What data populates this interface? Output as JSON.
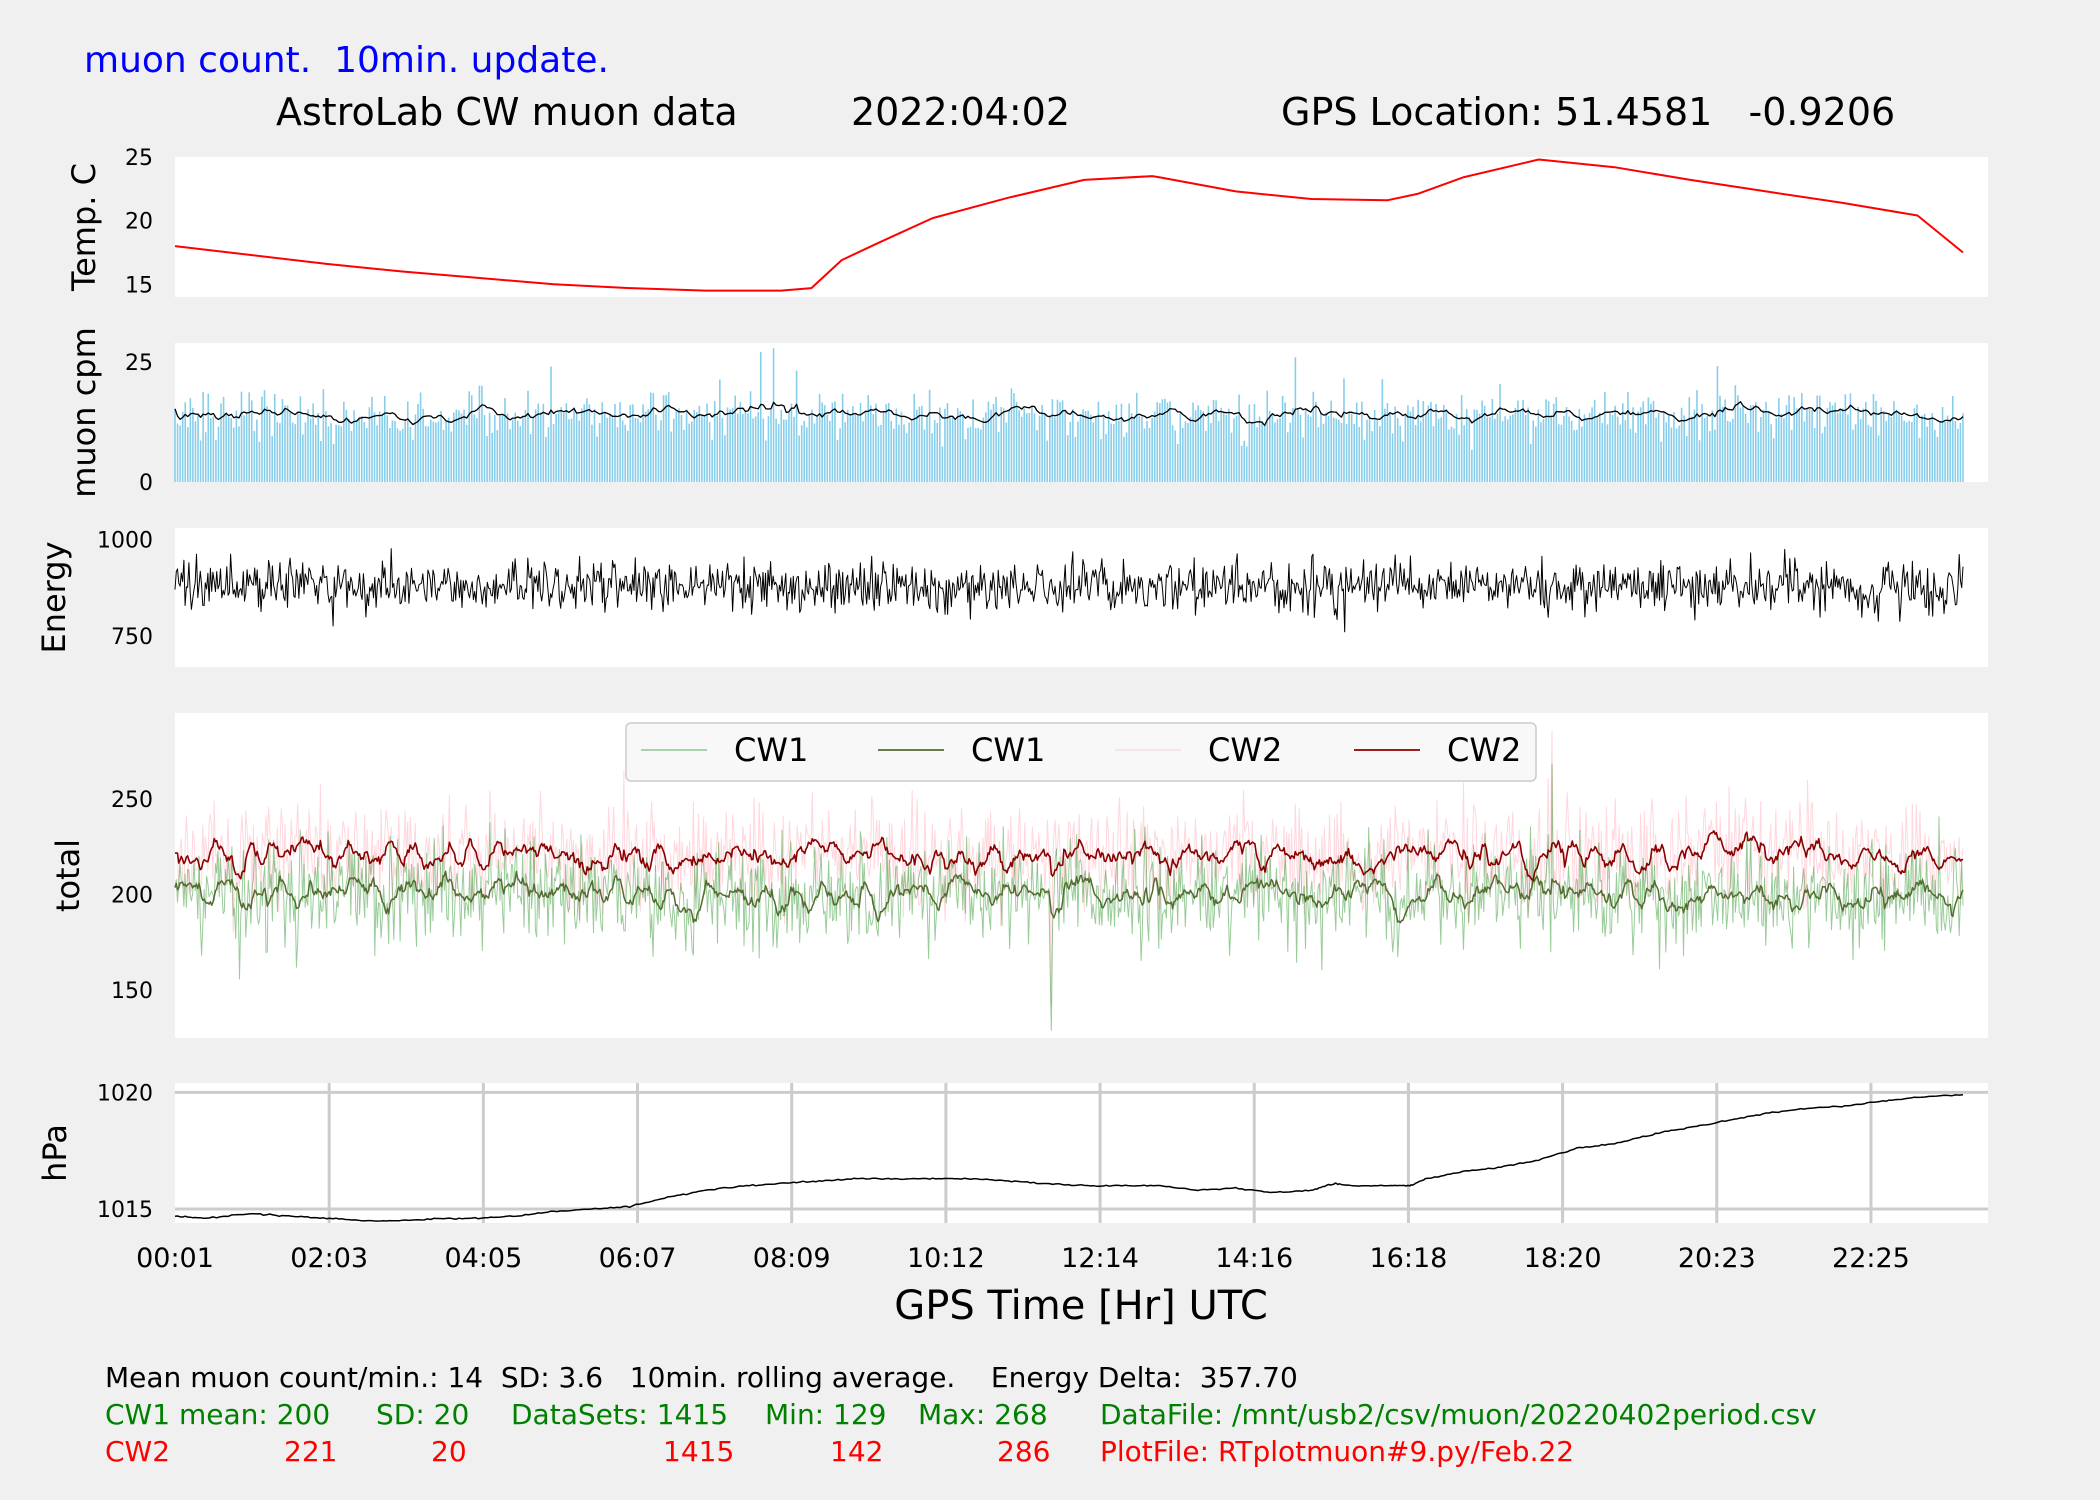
{
  "header": {
    "note": "muon count.  10min. update.",
    "title": "AstroLab CW muon data",
    "date": "2022:04:02",
    "gps": "GPS Location: 51.4581   -0.9206"
  },
  "chart_data": [
    {
      "type": "line",
      "ylabel": "Temp. C",
      "yticks": [
        15,
        20,
        25
      ],
      "ylim": [
        14,
        25
      ],
      "grid": false,
      "series": [
        {
          "color": "#ff0000",
          "x_hours": [
            0,
            1,
            2,
            3,
            4,
            5,
            6,
            7,
            8,
            8.4,
            8.8,
            9.3,
            10,
            11,
            12,
            12.9,
            13,
            14,
            15,
            16,
            16.4,
            17,
            18,
            19,
            20,
            21,
            22,
            23,
            23.6
          ],
          "values": [
            18.0,
            17.3,
            16.6,
            16.0,
            15.5,
            15.0,
            14.7,
            14.5,
            14.5,
            14.7,
            16.9,
            18.3,
            20.2,
            21.8,
            23.2,
            23.5,
            23.4,
            22.3,
            21.7,
            21.6,
            22.1,
            23.4,
            24.8,
            24.2,
            23.2,
            22.3,
            21.4,
            20.4,
            17.5
          ]
        }
      ]
    },
    {
      "type": "bar",
      "ylabel": "muon cpm",
      "yticks": [
        0,
        25
      ],
      "ylim": [
        0,
        29
      ],
      "grid": false,
      "mean": 14,
      "sd": 3.6,
      "bar_color": "#87ceeb",
      "rolling_color": "#000000",
      "rolling_window": "10min."
    },
    {
      "type": "line",
      "ylabel": "Energy",
      "yticks": [
        750,
        1000
      ],
      "ylim": [
        670,
        1030
      ],
      "grid": false,
      "center": 880,
      "series_color": "#000000"
    },
    {
      "type": "line",
      "ylabel": "total",
      "yticks": [
        150,
        200,
        250
      ],
      "ylim": [
        125,
        295
      ],
      "grid": false,
      "legend_position": "top-center",
      "series": [
        {
          "name": "CW1",
          "color": "#008000",
          "kind": "raw",
          "mean": 200,
          "sd": 20,
          "min": 129,
          "max": 268
        },
        {
          "name": "CW1",
          "color": "#556b2f",
          "kind": "rolling",
          "mean": 200
        },
        {
          "name": "CW2",
          "color": "#ffb6c1",
          "kind": "raw",
          "mean": 221,
          "sd": 20,
          "min": 142,
          "max": 286
        },
        {
          "name": "CW2",
          "color": "#8b0000",
          "kind": "rolling",
          "mean": 221
        }
      ]
    },
    {
      "type": "line",
      "ylabel": "hPa",
      "yticks": [
        1015,
        1020
      ],
      "ylim": [
        1014.4,
        1020.4
      ],
      "grid": true,
      "xlabel": "GPS Time  [Hr] UTC",
      "xticks": [
        "00:01",
        "02:03",
        "04:05",
        "06:07",
        "08:09",
        "10:12",
        "12:14",
        "14:16",
        "16:18",
        "18:20",
        "20:23",
        "22:25"
      ],
      "series": [
        {
          "color": "#000000",
          "x_hours": [
            0,
            0.4,
            1,
            1.5,
            2,
            2.5,
            3,
            3.5,
            4,
            4.5,
            5,
            5.5,
            6,
            6.5,
            7,
            7.5,
            8,
            8.5,
            9,
            9.5,
            10,
            10.5,
            11,
            11.5,
            12,
            12.5,
            13,
            13.5,
            14,
            14.5,
            15,
            15.3,
            15.5,
            16,
            16.3,
            16.5,
            17,
            17.5,
            18,
            18.5,
            19,
            19.5,
            20,
            20.5,
            21,
            21.5,
            22,
            22.5,
            23,
            23.6
          ],
          "values": [
            1014.7,
            1014.6,
            1014.8,
            1014.7,
            1014.6,
            1014.5,
            1014.5,
            1014.6,
            1014.6,
            1014.7,
            1014.9,
            1015.0,
            1015.1,
            1015.5,
            1015.8,
            1016.0,
            1016.1,
            1016.2,
            1016.3,
            1016.3,
            1016.3,
            1016.3,
            1016.2,
            1016.1,
            1016.0,
            1016.0,
            1016.0,
            1015.8,
            1015.9,
            1015.7,
            1015.8,
            1016.1,
            1016.0,
            1016.0,
            1016.0,
            1016.3,
            1016.6,
            1016.8,
            1017.1,
            1017.6,
            1017.8,
            1018.2,
            1018.5,
            1018.8,
            1019.1,
            1019.3,
            1019.4,
            1019.6,
            1019.8,
            1019.9
          ]
        }
      ]
    }
  ],
  "stats": {
    "line1": "Mean muon count/min.: 14  SD: 3.6   10min. rolling average.    Energy Delta:  357.70",
    "cw1": {
      "label": "CW1 mean: 200",
      "sd": "SD: 20",
      "datasets": "DataSets: 1415",
      "min": "Min: 129",
      "max": "Max: 268",
      "file": "DataFile: /mnt/usb2/csv/muon/20220402period.csv"
    },
    "cw2": {
      "label": "CW2",
      "mean": "221",
      "sd": "20",
      "datasets": "1415",
      "min": "142",
      "max": "286",
      "file": "PlotFile: RTplotmuon#9.py/Feb.22"
    }
  },
  "colors": {
    "background": "#f0f0f0",
    "panel": "#ffffff",
    "title_note": "#0000ff",
    "cw1_text": "#008000",
    "cw2_text": "#ff0000"
  }
}
